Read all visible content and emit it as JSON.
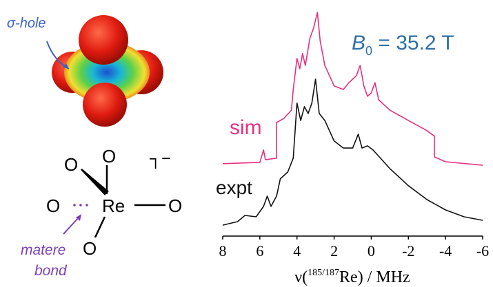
{
  "chart_data": {
    "type": "line",
    "annotation": {
      "symbol": "B",
      "sub": "0",
      "rest": " = 35.2 T"
    },
    "xlabel": {
      "pre": "ν(",
      "sup": "185/187",
      "post": "Re) / MHz"
    },
    "xlim": [
      8,
      -6
    ],
    "xticks": [
      8,
      6,
      4,
      2,
      0,
      -2,
      -4,
      -6
    ],
    "ylim": [
      0,
      100
    ],
    "series": [
      {
        "name": "sim",
        "color": "#e6307f",
        "x": [
          8,
          6.0,
          5.8,
          5.7,
          5.1,
          5.1,
          4.7,
          4.3,
          4.2,
          4.0,
          3.85,
          3.7,
          3.55,
          3.3,
          3.1,
          2.9,
          2.75,
          2.5,
          2.0,
          1.5,
          1.2,
          0.8,
          0.6,
          0.4,
          0.2,
          0.0,
          -0.2,
          -0.4,
          -1,
          -2,
          -3,
          -3.4,
          -3.4,
          -4,
          -6
        ],
        "values": [
          28.8,
          29.4,
          35,
          30.6,
          31.3,
          47.5,
          49.4,
          53.1,
          62.5,
          76.6,
          71.9,
          78.8,
          73.4,
          85.9,
          90.6,
          97.5,
          84.4,
          73.4,
          64.1,
          62.5,
          65.6,
          68.8,
          73.4,
          64.1,
          59.4,
          60.9,
          65.6,
          57.8,
          53.1,
          48.4,
          43.8,
          41.3,
          31.9,
          29.7,
          28.1
        ]
      },
      {
        "name": "expt",
        "color": "#111111",
        "x": [
          8,
          7.2,
          6.8,
          6.2,
          5.8,
          5.6,
          5.4,
          5.1,
          4.9,
          4.5,
          4.2,
          4.0,
          3.8,
          3.6,
          3.4,
          3.2,
          3.0,
          2.8,
          2.5,
          2.0,
          1.5,
          1.0,
          0.7,
          0.5,
          0.2,
          -0.1,
          -1,
          -2,
          -3,
          -4,
          -5,
          -6
        ],
        "values": [
          0.9,
          2.5,
          5.3,
          4.7,
          9.4,
          14.1,
          9.4,
          14.1,
          21.9,
          25,
          31.3,
          56.3,
          48.4,
          54.7,
          51.6,
          56.3,
          67.2,
          51.6,
          48.4,
          39.1,
          35.9,
          35.9,
          42.2,
          35.9,
          36.9,
          35,
          26.6,
          18.8,
          12.5,
          7.8,
          4.7,
          3.1
        ]
      }
    ]
  },
  "figure": {
    "sigma_hole": "σ-hole",
    "charge": "┐−",
    "oxygen": [
      "O",
      "O",
      "O",
      "O",
      "O"
    ],
    "rhenium": "Re",
    "bond_label": [
      "matere",
      "bond"
    ]
  }
}
